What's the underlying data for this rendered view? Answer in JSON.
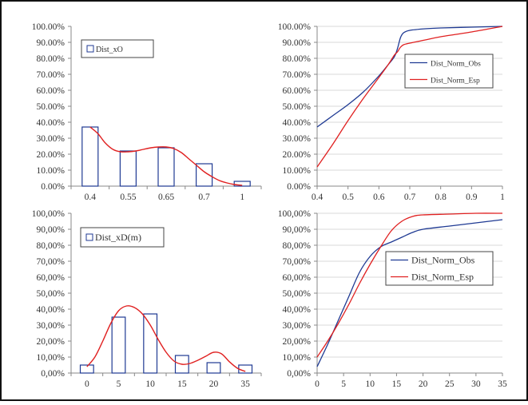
{
  "colors": {
    "bar_edge": "#1f3a93",
    "fit_line": "#e02020",
    "obs_line": "#1f3a93",
    "grid": "#d9d9d9",
    "axis": "#888888"
  },
  "chart_data": [
    {
      "id": "top-left",
      "type": "bar",
      "legend": {
        "entries": [
          "Dist_xO"
        ],
        "placement": "top-left"
      },
      "categories": [
        "0.4",
        "0.55",
        "0.65",
        "0.7",
        "1"
      ],
      "series": [
        {
          "name": "Dist_xO",
          "values": [
            0.37,
            0.22,
            0.24,
            0.14,
            0.03
          ]
        }
      ],
      "fit_curve": {
        "x": [
          0.0,
          0.05,
          0.1,
          0.15,
          0.2,
          0.25,
          0.3,
          0.35,
          0.4,
          0.45,
          0.5,
          0.55,
          0.6,
          0.65,
          0.7,
          0.75,
          0.8,
          0.85,
          0.9,
          0.95,
          1.0
        ],
        "y": [
          0.37,
          0.33,
          0.27,
          0.23,
          0.215,
          0.215,
          0.22,
          0.23,
          0.24,
          0.245,
          0.245,
          0.235,
          0.21,
          0.17,
          0.13,
          0.09,
          0.06,
          0.035,
          0.02,
          0.01,
          0.005
        ]
      },
      "yticks": [
        "0.00%",
        "10.00%",
        "20.00%",
        "30.00%",
        "40.00%",
        "50.00%",
        "60.00%",
        "70.00%",
        "80.00%",
        "90.00%",
        "100.00%"
      ],
      "ylim": [
        0,
        1
      ],
      "grid": false
    },
    {
      "id": "top-right",
      "type": "line",
      "legend": {
        "entries": [
          "Dist_Norm_Obs",
          "Dist_Norm_Esp"
        ],
        "placement": "right"
      },
      "xticks": [
        "0.4",
        "0.5",
        "0.6",
        "0.7",
        "0.8",
        "0.9",
        "1"
      ],
      "xlim": [
        0.4,
        1
      ],
      "ylim": [
        0,
        1
      ],
      "yticks": [
        "0.00%",
        "10.00%",
        "20.00%",
        "30.00%",
        "40.00%",
        "50.00%",
        "60.00%",
        "70.00%",
        "80.00%",
        "90.00%",
        "100.00%"
      ],
      "series": [
        {
          "name": "Dist_Norm_Obs",
          "x": [
            0.4,
            0.45,
            0.5,
            0.55,
            0.6,
            0.63,
            0.65,
            0.66,
            0.67,
            0.68,
            0.7,
            0.75,
            0.8,
            0.9,
            1.0
          ],
          "y": [
            0.37,
            0.44,
            0.51,
            0.59,
            0.69,
            0.76,
            0.81,
            0.86,
            0.93,
            0.96,
            0.975,
            0.985,
            0.99,
            0.995,
            1.0
          ]
        },
        {
          "name": "Dist_Norm_Esp",
          "x": [
            0.4,
            0.45,
            0.5,
            0.55,
            0.6,
            0.63,
            0.65,
            0.66,
            0.67,
            0.68,
            0.7,
            0.75,
            0.8,
            0.9,
            1.0
          ],
          "y": [
            0.12,
            0.26,
            0.41,
            0.55,
            0.68,
            0.76,
            0.82,
            0.84,
            0.87,
            0.885,
            0.895,
            0.915,
            0.935,
            0.965,
            1.0
          ]
        }
      ],
      "grid": true
    },
    {
      "id": "bottom-left",
      "type": "bar",
      "legend": {
        "entries": [
          "Dist_xD(m)"
        ],
        "placement": "top-left"
      },
      "categories": [
        "0",
        "5",
        "10",
        "15",
        "20",
        "35"
      ],
      "series": [
        {
          "name": "Dist_xD(m)",
          "values": [
            0.05,
            0.35,
            0.37,
            0.11,
            0.065,
            0.05
          ]
        }
      ],
      "fit_curve": {
        "x": [
          0.0,
          0.05,
          0.1,
          0.15,
          0.2,
          0.25,
          0.3,
          0.35,
          0.4,
          0.45,
          0.5,
          0.55,
          0.6,
          0.65,
          0.7,
          0.75,
          0.8,
          0.85,
          0.9,
          0.95,
          1.0
        ],
        "y": [
          0.04,
          0.1,
          0.2,
          0.31,
          0.39,
          0.42,
          0.41,
          0.37,
          0.3,
          0.21,
          0.13,
          0.075,
          0.055,
          0.06,
          0.08,
          0.105,
          0.13,
          0.12,
          0.07,
          0.03,
          0.01
        ]
      },
      "yticks": [
        "0,00%",
        "10,00%",
        "20,00%",
        "30,00%",
        "40,00%",
        "50,00%",
        "60,00%",
        "70,00%",
        "80,00%",
        "90,00%",
        "100,00%"
      ],
      "ylim": [
        0,
        1
      ],
      "grid": false
    },
    {
      "id": "bottom-right",
      "type": "line",
      "legend": {
        "entries": [
          "Dist_Norm_Obs",
          "Dist_Norm_Esp"
        ],
        "placement": "right"
      },
      "xticks": [
        "0",
        "5",
        "10",
        "15",
        "20",
        "25",
        "30",
        "35"
      ],
      "xlim": [
        0,
        35
      ],
      "ylim": [
        0,
        1
      ],
      "yticks": [
        "0,00%",
        "10,00%",
        "20,00%",
        "30,00%",
        "40,00%",
        "50,00%",
        "60,00%",
        "70,00%",
        "80,00%",
        "90,00%",
        "100,00%"
      ],
      "series": [
        {
          "name": "Dist_Norm_Obs",
          "x": [
            0,
            2,
            4,
            6,
            8,
            10,
            12,
            14,
            16,
            18,
            20,
            25,
            30,
            35
          ],
          "y": [
            0.04,
            0.18,
            0.33,
            0.48,
            0.63,
            0.73,
            0.79,
            0.82,
            0.85,
            0.88,
            0.9,
            0.92,
            0.94,
            0.96
          ]
        },
        {
          "name": "Dist_Norm_Esp",
          "x": [
            0,
            2,
            4,
            6,
            8,
            10,
            12,
            14,
            16,
            18,
            20,
            25,
            30,
            35
          ],
          "y": [
            0.1,
            0.2,
            0.31,
            0.43,
            0.56,
            0.68,
            0.79,
            0.89,
            0.95,
            0.98,
            0.99,
            0.995,
            1.0,
            1.0
          ]
        }
      ],
      "grid": true
    }
  ]
}
